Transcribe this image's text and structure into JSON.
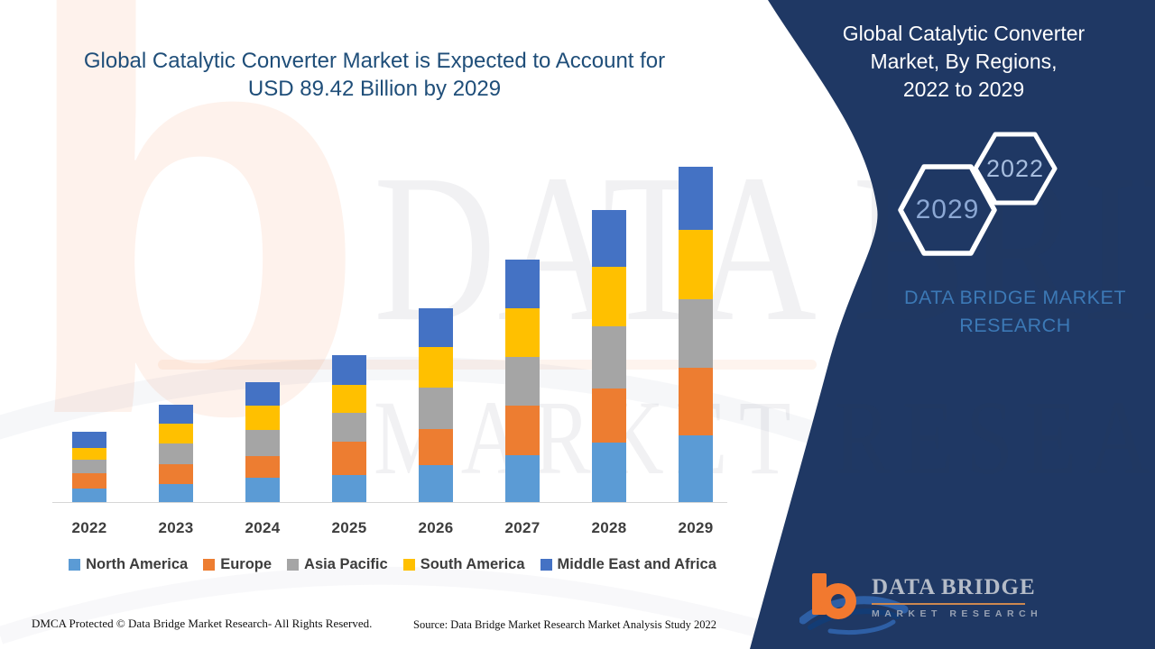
{
  "header": {
    "title_line1": "Global Catalytic Converter Market is Expected to Account for",
    "title_line2": "USD 89.42 Billion by 2029"
  },
  "side_panel": {
    "title_line1": "Global Catalytic Converter",
    "title_line2": "Market, By Regions,",
    "title_line3": "2022 to 2029",
    "hexagon_back_label": "2029",
    "hexagon_front_label": "2022",
    "brand_line1": "DATA BRIDGE MARKET",
    "brand_line2": "RESEARCH"
  },
  "watermark": {
    "logo_letter": "b",
    "line1": "DATA BRIDGE",
    "line2": "MARKET RESEARCH"
  },
  "logo": {
    "brand": "DATA BRIDGE",
    "subtitle": "MARKET RESEARCH"
  },
  "footer": {
    "dmca": "DMCA Protected © Data Bridge Market Research- All Rights Reserved.",
    "source": "Source: Data Bridge Market Research Market Analysis Study 2022"
  },
  "colors": {
    "navy": "#1F3864",
    "title": "#1F4E79",
    "axis_line": "#D6D6D6",
    "label": "#3D3D3D"
  },
  "chart_data": {
    "type": "bar",
    "stacked": true,
    "title": "Global Catalytic Converter Market is Expected to Account for USD 89.42 Billion by 2029",
    "unit": "USD Billion",
    "categories": [
      "2022",
      "2023",
      "2024",
      "2025",
      "2026",
      "2027",
      "2028",
      "2029"
    ],
    "series": [
      {
        "name": "North America",
        "color": "#5B9BD5",
        "values": [
          3.6,
          4.8,
          6.4,
          7.2,
          10.0,
          12.6,
          15.9,
          17.83
        ]
      },
      {
        "name": "Europe",
        "color": "#ED7D31",
        "values": [
          4.1,
          5.3,
          5.9,
          8.8,
          9.7,
          13.2,
          14.4,
          18.09
        ]
      },
      {
        "name": "Asia Pacific",
        "color": "#A5A5A5",
        "values": [
          3.6,
          5.5,
          7.1,
          7.6,
          11.0,
          13.1,
          16.6,
          18.24
        ]
      },
      {
        "name": "South America",
        "color": "#FFC000",
        "values": [
          3.2,
          5.2,
          6.6,
          7.5,
          10.8,
          13.0,
          15.8,
          18.48
        ]
      },
      {
        "name": "Middle East and Africa",
        "color": "#4472C4",
        "values": [
          4.4,
          5.0,
          6.3,
          7.9,
          10.3,
          13.0,
          15.1,
          16.78
        ]
      }
    ],
    "totals": [
      18.9,
      25.8,
      32.3,
      39.0,
      51.8,
      64.9,
      77.8,
      89.42
    ],
    "ylim": [
      0,
      95
    ],
    "y_axis_visible": false,
    "grid": false,
    "legend_position": "bottom"
  }
}
